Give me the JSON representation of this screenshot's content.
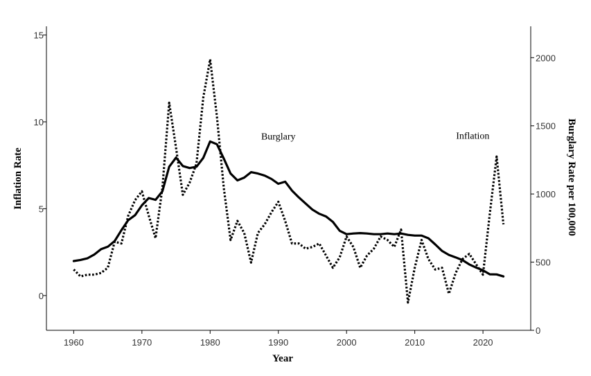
{
  "chart_data": {
    "type": "line",
    "xlabel": "Year",
    "ylabel_left": "Inflation Rate",
    "ylabel_right": "Burglary Rate per 100,000",
    "xlim": [
      1956,
      2027
    ],
    "ylim_left": [
      -2,
      15.5
    ],
    "ylim_right": [
      0,
      2230
    ],
    "x_ticks": [
      1960,
      1970,
      1980,
      1990,
      2000,
      2010,
      2020
    ],
    "y_ticks_left": [
      0,
      5,
      10,
      15
    ],
    "y_ticks_right": [
      0,
      500,
      1000,
      1500,
      2000
    ],
    "annotations": [
      {
        "text": "Burglary",
        "year": 1990,
        "value": 1399,
        "axis": "right"
      },
      {
        "text": "Inflation",
        "year": 2018.5,
        "value": 1405,
        "axis": "right"
      }
    ],
    "series": [
      {
        "name": "Burglary",
        "axis": "right",
        "style": "solid",
        "color": "#000000",
        "x": [
          1960,
          1961,
          1962,
          1963,
          1964,
          1965,
          1966,
          1967,
          1968,
          1969,
          1970,
          1971,
          1972,
          1973,
          1974,
          1975,
          1976,
          1977,
          1978,
          1979,
          1980,
          1981,
          1982,
          1983,
          1984,
          1985,
          1986,
          1987,
          1988,
          1989,
          1990,
          1991,
          1992,
          1993,
          1994,
          1995,
          1996,
          1997,
          1998,
          1999,
          2000,
          2001,
          2002,
          2003,
          2004,
          2005,
          2006,
          2007,
          2008,
          2009,
          2010,
          2011,
          2012,
          2013,
          2014,
          2015,
          2016,
          2017,
          2018,
          2019,
          2020,
          2021,
          2022,
          2023
        ],
        "values": [
          508,
          516,
          528,
          555,
          595,
          613,
          655,
          735,
          808,
          845,
          917,
          970,
          957,
          1020,
          1200,
          1267,
          1205,
          1190,
          1200,
          1265,
          1385,
          1365,
          1260,
          1150,
          1100,
          1120,
          1160,
          1150,
          1135,
          1110,
          1075,
          1090,
          1025,
          975,
          930,
          885,
          855,
          835,
          795,
          730,
          705,
          710,
          713,
          710,
          705,
          705,
          710,
          705,
          710,
          700,
          695,
          695,
          675,
          630,
          582,
          553,
          535,
          515,
          483,
          460,
          440,
          411,
          410,
          395
        ]
      },
      {
        "name": "Inflation",
        "axis": "left",
        "style": "dotted",
        "color": "#000000",
        "x": [
          1960,
          1961,
          1962,
          1963,
          1964,
          1965,
          1966,
          1967,
          1968,
          1969,
          1970,
          1971,
          1972,
          1973,
          1974,
          1975,
          1976,
          1977,
          1978,
          1979,
          1980,
          1981,
          1982,
          1983,
          1984,
          1985,
          1986,
          1987,
          1988,
          1989,
          1990,
          1991,
          1992,
          1993,
          1994,
          1995,
          1996,
          1997,
          1998,
          1999,
          2000,
          2001,
          2002,
          2003,
          2004,
          2005,
          2006,
          2007,
          2008,
          2009,
          2010,
          2011,
          2012,
          2013,
          2014,
          2015,
          2016,
          2017,
          2018,
          2019,
          2020,
          2021,
          2022,
          2023
        ],
        "values": [
          1.5,
          1.1,
          1.2,
          1.2,
          1.3,
          1.6,
          3.1,
          3.0,
          4.6,
          5.5,
          6.0,
          4.6,
          3.3,
          6.2,
          11.1,
          8.5,
          5.8,
          6.5,
          7.6,
          11.4,
          13.6,
          10.3,
          6.2,
          3.2,
          4.3,
          3.6,
          1.9,
          3.6,
          4.1,
          4.8,
          5.4,
          4.3,
          3.0,
          3.0,
          2.7,
          2.8,
          3.0,
          2.3,
          1.6,
          2.2,
          3.4,
          2.8,
          1.6,
          2.3,
          2.7,
          3.4,
          3.2,
          2.8,
          3.8,
          -0.4,
          1.6,
          3.2,
          2.1,
          1.5,
          1.6,
          0.1,
          1.3,
          2.1,
          2.4,
          1.8,
          1.2,
          4.7,
          8.0,
          4.1
        ]
      }
    ]
  }
}
